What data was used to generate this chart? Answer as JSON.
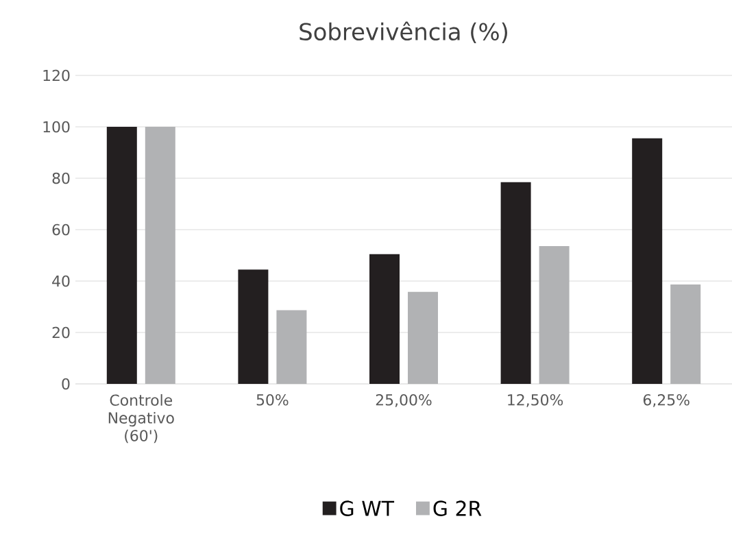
{
  "chart_data": {
    "type": "bar",
    "title": "Sobrevivência (%)",
    "categories": [
      "Controle Negativo (60')",
      "50%",
      "25,00%",
      "12,50%",
      "6,25%"
    ],
    "series": [
      {
        "name": "G WT",
        "color": "#231f20",
        "values": [
          100,
          44.5,
          50.5,
          78.5,
          95.5
        ]
      },
      {
        "name": "G 2R",
        "color": "#b1b2b4",
        "values": [
          100,
          28.7,
          35.8,
          53.6,
          38.7
        ]
      }
    ],
    "ylim": [
      0,
      120
    ],
    "yticks": [
      0,
      20,
      40,
      60,
      80,
      100,
      120
    ],
    "grid": "y",
    "legend": "bottom"
  }
}
